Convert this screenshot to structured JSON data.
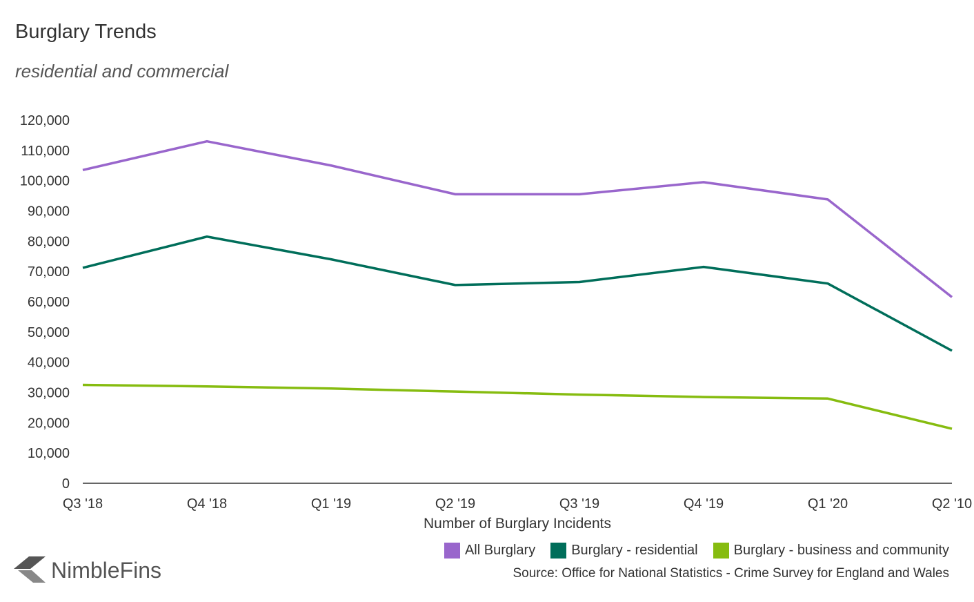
{
  "title": "Burglary Trends",
  "subtitle": "residential and commercial",
  "logo_text": "NimbleFins",
  "source": "Source: Office for National Statistics - Crime Survey for England and Wales",
  "chart_data": {
    "type": "line",
    "title": "Burglary Trends",
    "subtitle": "residential and commercial",
    "xlabel": "Number of Burglary Incidents",
    "ylabel": "",
    "categories": [
      "Q3 '18",
      "Q4 '18",
      "Q1 '19",
      "Q2 '19",
      "Q3 '19",
      "Q4 '19",
      "Q1 '20",
      "Q2 '10"
    ],
    "ylim": [
      0,
      120000
    ],
    "yticks": [
      0,
      10000,
      20000,
      30000,
      40000,
      50000,
      60000,
      70000,
      80000,
      90000,
      100000,
      110000,
      120000
    ],
    "ytick_labels": [
      "0",
      "10,000",
      "20,000",
      "30,000",
      "40,000",
      "50,000",
      "60,000",
      "70,000",
      "80,000",
      "90,000",
      "100,000",
      "110,000",
      "120,000"
    ],
    "grid": false,
    "legend_position": "bottom-right",
    "series": [
      {
        "name": "All Burglary",
        "color": "#9966cc",
        "values": [
          103500,
          113000,
          105000,
          95500,
          95500,
          99500,
          93800,
          61500
        ]
      },
      {
        "name": "Burglary - residential",
        "color": "#006e5a",
        "values": [
          71200,
          81500,
          74000,
          65500,
          66500,
          71500,
          66000,
          43800
        ]
      },
      {
        "name": "Burglary - business and community",
        "color": "#86bc10",
        "values": [
          32500,
          32000,
          31300,
          30300,
          29300,
          28500,
          28000,
          18000
        ]
      }
    ]
  }
}
